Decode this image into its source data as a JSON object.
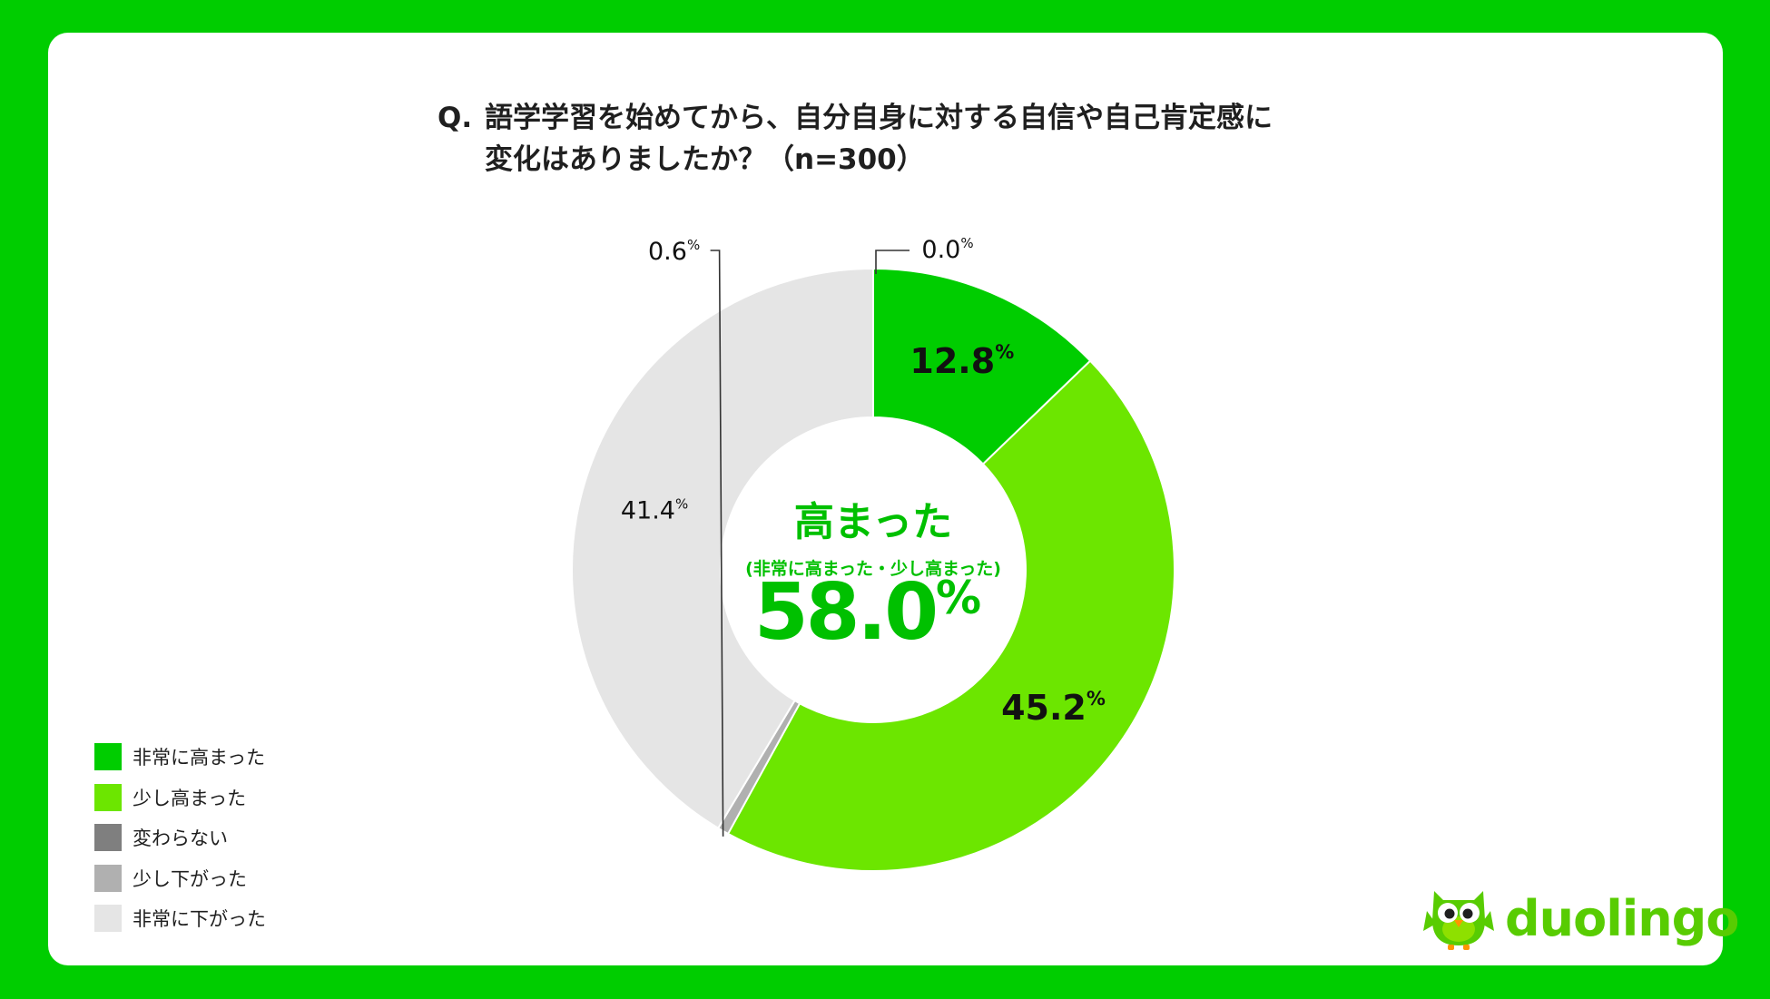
{
  "title": {
    "prefix": "Q.",
    "line1": "語学学習を始めてから、自分自身に対する自信や自己肯定感に",
    "line2": "変化はありましたか？（n=300）"
  },
  "chart_data": {
    "type": "pie",
    "categories": [
      "非常に高まった",
      "少し高まった",
      "変わらない",
      "少し下がった",
      "非常に下がった"
    ],
    "values": [
      12.8,
      45.2,
      0.0,
      0.6,
      41.4
    ],
    "value_labels": [
      "12.8",
      "45.2",
      "0.0",
      "0.6",
      "41.4"
    ],
    "unit": "%",
    "colors": [
      "#00CD00",
      "#6CE600",
      "#7F7F7F",
      "#B0B0B0",
      "#E5E5E5"
    ],
    "legend_position": "bottom-left",
    "center": {
      "heading": "高まった",
      "subheading": "(非常に高まった・少し高まった)",
      "value": "58.0",
      "unit": "%"
    }
  },
  "logo": {
    "icon": "owl-mascot-icon",
    "text": "duolingo"
  }
}
